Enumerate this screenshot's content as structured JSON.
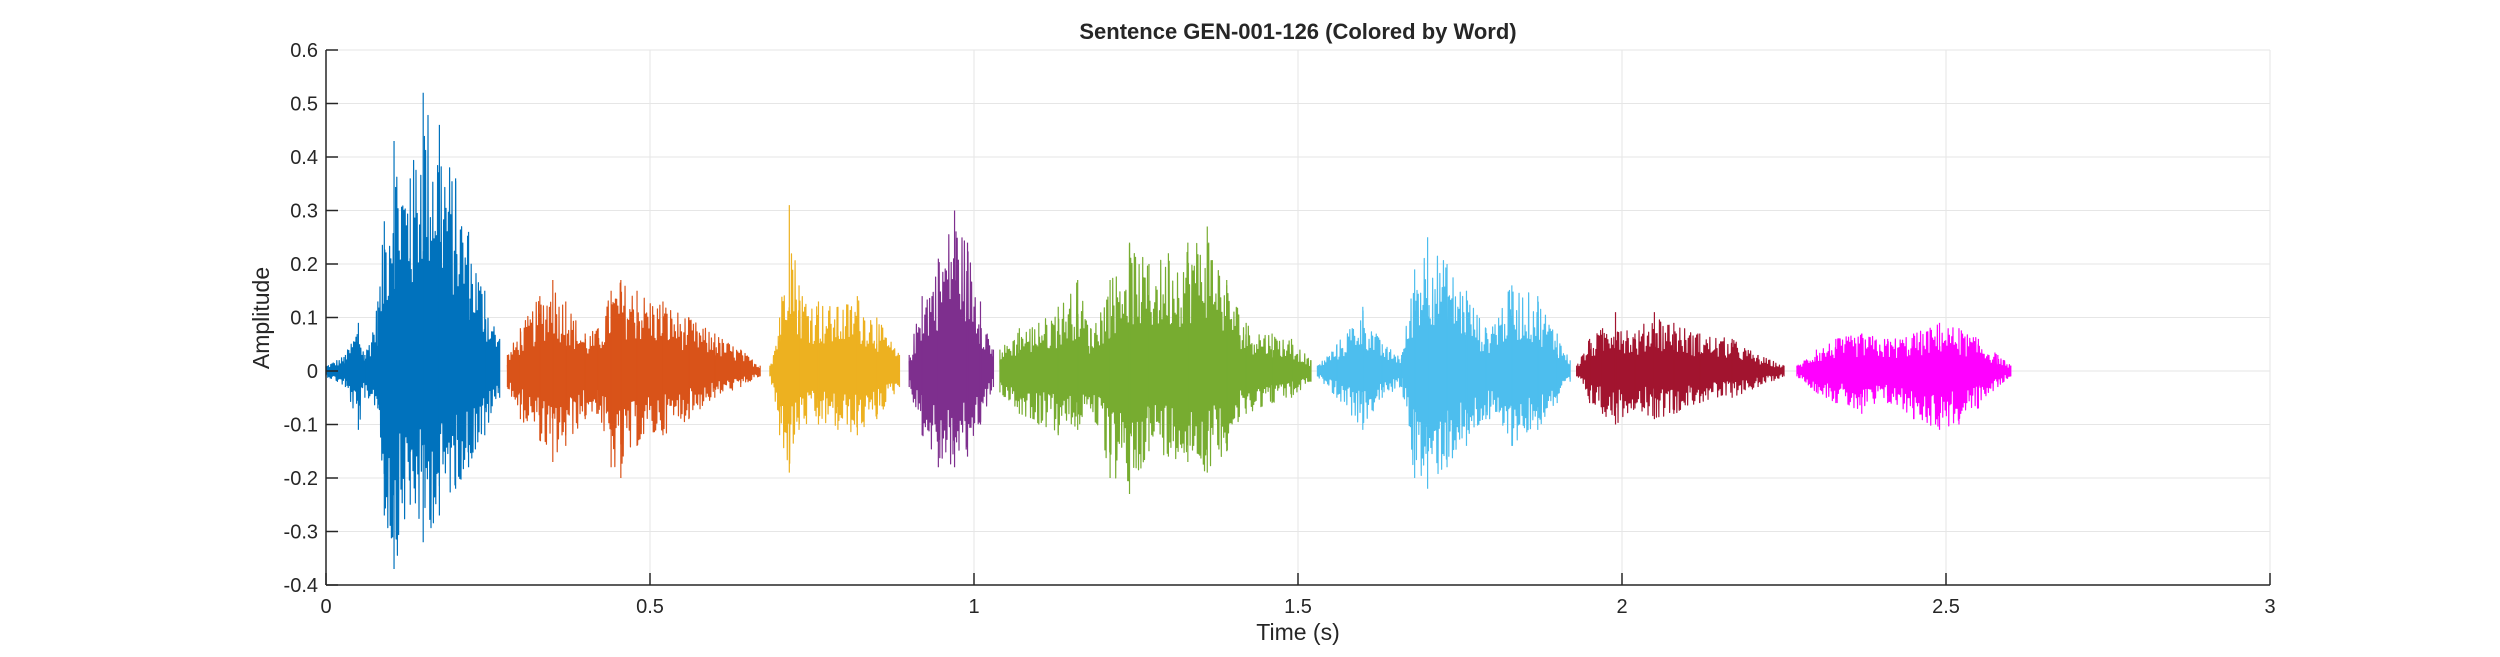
{
  "chart_data": {
    "type": "line",
    "title": "Sentence GEN-001-126 (Colored by Word)",
    "xlabel": "Time (s)",
    "ylabel": "Amplitude",
    "xlim": [
      0,
      3
    ],
    "ylim": [
      -0.4,
      0.6
    ],
    "xticks": [
      0,
      0.5,
      1,
      1.5,
      2,
      2.5,
      3
    ],
    "xtick_labels": [
      "0",
      "0.5",
      "1",
      "1.5",
      "2",
      "2.5",
      "3"
    ],
    "yticks": [
      -0.4,
      -0.3,
      -0.2,
      -0.1,
      0,
      0.1,
      0.2,
      0.3,
      0.4,
      0.5,
      0.6
    ],
    "ytick_labels": [
      "-0.4",
      "-0.3",
      "-0.2",
      "-0.1",
      "0",
      "0.1",
      "0.2",
      "0.3",
      "0.4",
      "0.5",
      "0.6"
    ],
    "grid": true,
    "legend": "none",
    "series": [
      {
        "color": "#0072BD",
        "start": 0.0,
        "end": 0.268,
        "envelope": [
          [
            0.0,
            0.01,
            -0.01
          ],
          [
            0.03,
            0.03,
            -0.03
          ],
          [
            0.05,
            0.09,
            -0.11
          ],
          [
            0.06,
            0.03,
            -0.05
          ],
          [
            0.08,
            0.13,
            -0.07
          ],
          [
            0.09,
            0.28,
            -0.27
          ],
          [
            0.105,
            0.43,
            -0.37
          ],
          [
            0.13,
            0.36,
            -0.25
          ],
          [
            0.15,
            0.52,
            -0.32
          ],
          [
            0.175,
            0.46,
            -0.27
          ],
          [
            0.2,
            0.36,
            -0.22
          ],
          [
            0.22,
            0.26,
            -0.18
          ],
          [
            0.245,
            0.15,
            -0.12
          ],
          [
            0.268,
            0.06,
            -0.05
          ]
        ]
      },
      {
        "color": "#D95319",
        "start": 0.28,
        "end": 0.67,
        "envelope": [
          [
            0.28,
            0.03,
            -0.03
          ],
          [
            0.3,
            0.08,
            -0.09
          ],
          [
            0.33,
            0.14,
            -0.13
          ],
          [
            0.35,
            0.17,
            -0.17
          ],
          [
            0.37,
            0.13,
            -0.14
          ],
          [
            0.4,
            0.07,
            -0.09
          ],
          [
            0.42,
            0.08,
            -0.08
          ],
          [
            0.44,
            0.15,
            -0.18
          ],
          [
            0.455,
            0.17,
            -0.2
          ],
          [
            0.48,
            0.15,
            -0.14
          ],
          [
            0.52,
            0.13,
            -0.12
          ],
          [
            0.56,
            0.1,
            -0.09
          ],
          [
            0.6,
            0.07,
            -0.05
          ],
          [
            0.64,
            0.04,
            -0.03
          ],
          [
            0.67,
            0.01,
            -0.01
          ]
        ]
      },
      {
        "color": "#EDB120",
        "start": 0.685,
        "end": 0.885,
        "envelope": [
          [
            0.685,
            0.01,
            -0.01
          ],
          [
            0.7,
            0.1,
            -0.12
          ],
          [
            0.715,
            0.31,
            -0.19
          ],
          [
            0.73,
            0.16,
            -0.11
          ],
          [
            0.76,
            0.13,
            -0.1
          ],
          [
            0.79,
            0.12,
            -0.11
          ],
          [
            0.82,
            0.14,
            -0.12
          ],
          [
            0.85,
            0.1,
            -0.09
          ],
          [
            0.885,
            0.03,
            -0.03
          ]
        ]
      },
      {
        "color": "#7E2F8E",
        "start": 0.9,
        "end": 1.03,
        "envelope": [
          [
            0.9,
            0.03,
            -0.03
          ],
          [
            0.92,
            0.14,
            -0.12
          ],
          [
            0.945,
            0.21,
            -0.18
          ],
          [
            0.97,
            0.3,
            -0.18
          ],
          [
            0.99,
            0.24,
            -0.16
          ],
          [
            1.01,
            0.13,
            -0.1
          ],
          [
            1.03,
            0.04,
            -0.03
          ]
        ]
      },
      {
        "color": "#77AC30",
        "start": 1.04,
        "end": 1.52,
        "envelope": [
          [
            1.04,
            0.04,
            -0.04
          ],
          [
            1.07,
            0.08,
            -0.08
          ],
          [
            1.1,
            0.09,
            -0.1
          ],
          [
            1.13,
            0.12,
            -0.12
          ],
          [
            1.16,
            0.17,
            -0.11
          ],
          [
            1.18,
            0.08,
            -0.07
          ],
          [
            1.21,
            0.17,
            -0.2
          ],
          [
            1.24,
            0.24,
            -0.23
          ],
          [
            1.27,
            0.2,
            -0.15
          ],
          [
            1.3,
            0.22,
            -0.16
          ],
          [
            1.33,
            0.24,
            -0.17
          ],
          [
            1.36,
            0.27,
            -0.19
          ],
          [
            1.39,
            0.17,
            -0.15
          ],
          [
            1.42,
            0.09,
            -0.08
          ],
          [
            1.46,
            0.07,
            -0.06
          ],
          [
            1.49,
            0.06,
            -0.05
          ],
          [
            1.52,
            0.02,
            -0.02
          ]
        ]
      },
      {
        "color": "#4DBEEE",
        "start": 1.53,
        "end": 1.92,
        "envelope": [
          [
            1.53,
            0.01,
            -0.01
          ],
          [
            1.56,
            0.05,
            -0.05
          ],
          [
            1.6,
            0.12,
            -0.11
          ],
          [
            1.63,
            0.05,
            -0.05
          ],
          [
            1.66,
            0.03,
            -0.03
          ],
          [
            1.68,
            0.19,
            -0.2
          ],
          [
            1.7,
            0.25,
            -0.22
          ],
          [
            1.73,
            0.2,
            -0.18
          ],
          [
            1.76,
            0.15,
            -0.14
          ],
          [
            1.79,
            0.08,
            -0.09
          ],
          [
            1.83,
            0.16,
            -0.14
          ],
          [
            1.87,
            0.14,
            -0.11
          ],
          [
            1.9,
            0.07,
            -0.06
          ],
          [
            1.92,
            0.02,
            -0.02
          ]
        ]
      },
      {
        "color": "#A2142F",
        "start": 1.93,
        "end": 2.25,
        "envelope": [
          [
            1.93,
            0.01,
            -0.01
          ],
          [
            1.95,
            0.06,
            -0.06
          ],
          [
            1.97,
            0.08,
            -0.08
          ],
          [
            1.99,
            0.11,
            -0.1
          ],
          [
            2.02,
            0.07,
            -0.07
          ],
          [
            2.05,
            0.11,
            -0.09
          ],
          [
            2.08,
            0.09,
            -0.08
          ],
          [
            2.12,
            0.07,
            -0.06
          ],
          [
            2.17,
            0.06,
            -0.05
          ],
          [
            2.21,
            0.03,
            -0.03
          ],
          [
            2.25,
            0.01,
            -0.01
          ]
        ]
      },
      {
        "color": "#FF00FF",
        "start": 2.27,
        "end": 2.6,
        "envelope": [
          [
            2.27,
            0.01,
            -0.01
          ],
          [
            2.3,
            0.04,
            -0.04
          ],
          [
            2.33,
            0.06,
            -0.06
          ],
          [
            2.37,
            0.07,
            -0.08
          ],
          [
            2.41,
            0.06,
            -0.06
          ],
          [
            2.45,
            0.07,
            -0.09
          ],
          [
            2.49,
            0.09,
            -0.11
          ],
          [
            2.52,
            0.08,
            -0.1
          ],
          [
            2.55,
            0.06,
            -0.07
          ],
          [
            2.58,
            0.03,
            -0.03
          ],
          [
            2.6,
            0.01,
            -0.01
          ]
        ]
      }
    ]
  }
}
